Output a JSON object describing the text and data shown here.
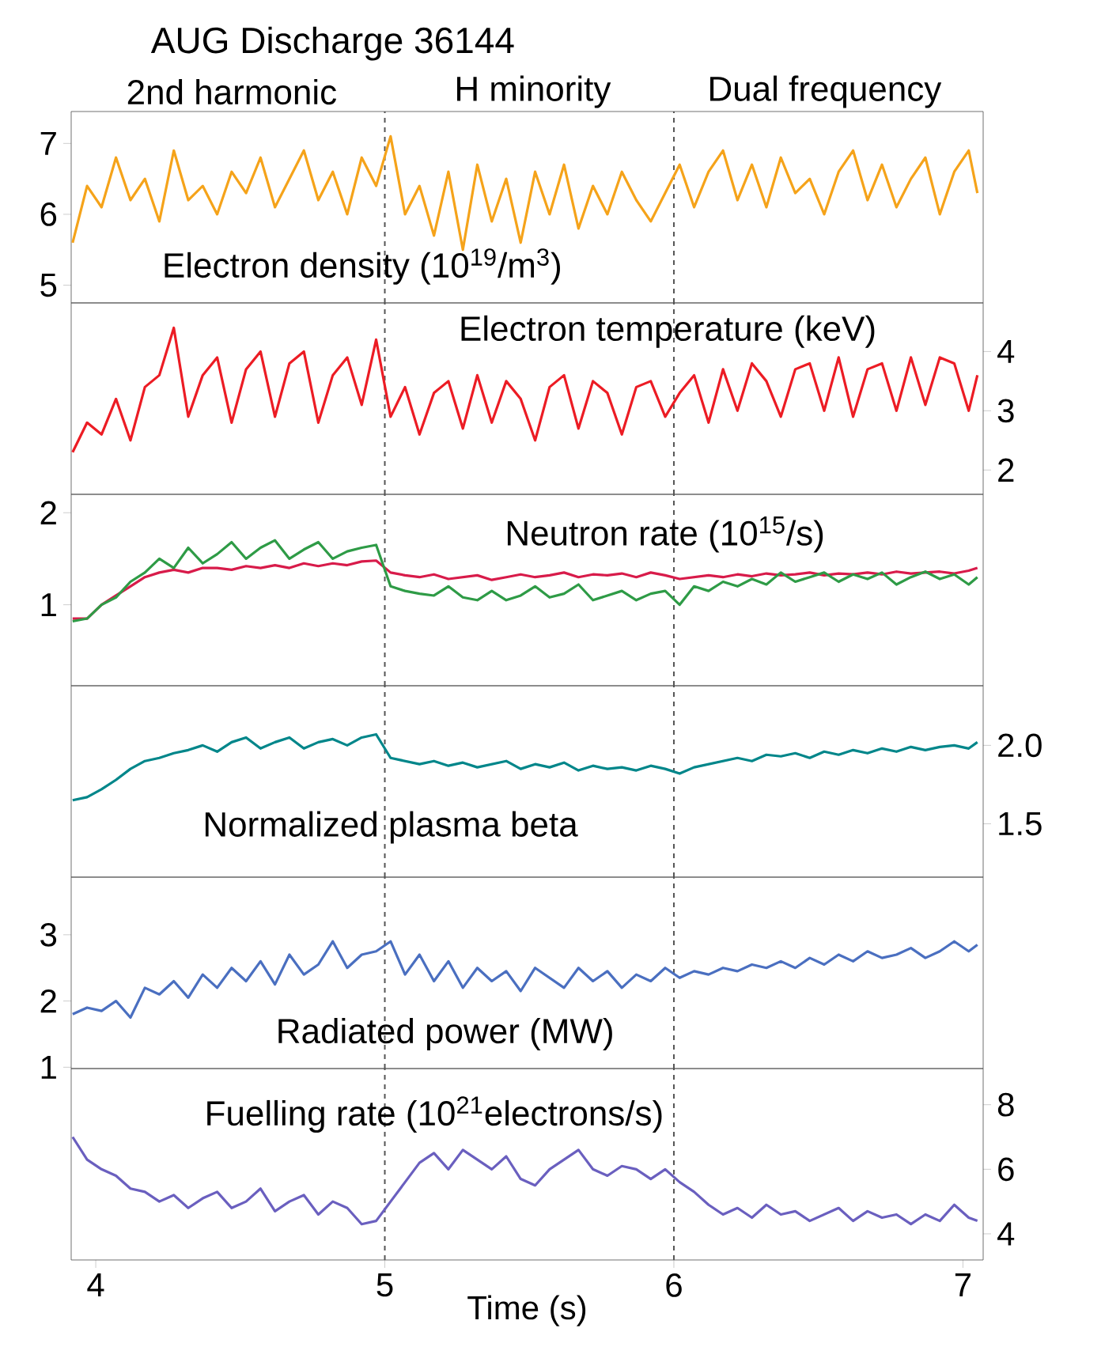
{
  "chart_data": [
    {
      "type": "line",
      "title": "AUG Discharge 36144",
      "annotations": [
        "2nd harmonic",
        "H minority",
        "Dual frequency",
        "Electron density (10$^{19}$/m$^{3}$)"
      ],
      "x": [
        3.92,
        3.97,
        4.02,
        4.07,
        4.12,
        4.17,
        4.22,
        4.27,
        4.32,
        4.37,
        4.42,
        4.47,
        4.52,
        4.57,
        4.62,
        4.67,
        4.72,
        4.77,
        4.82,
        4.87,
        4.92,
        4.97,
        5.02,
        5.07,
        5.12,
        5.17,
        5.22,
        5.27,
        5.32,
        5.37,
        5.42,
        5.47,
        5.52,
        5.57,
        5.62,
        5.67,
        5.72,
        5.77,
        5.82,
        5.87,
        5.92,
        5.97,
        6.02,
        6.07,
        6.12,
        6.17,
        6.22,
        6.27,
        6.32,
        6.37,
        6.42,
        6.47,
        6.52,
        6.57,
        6.62,
        6.67,
        6.72,
        6.77,
        6.82,
        6.87,
        6.92,
        6.97,
        7.02,
        7.05
      ],
      "xlim": [
        3.915,
        7.07
      ],
      "ylim": [
        4.75,
        7.45
      ],
      "yticks": [
        5,
        6,
        7
      ],
      "tick_labels": "y",
      "line_style": "solid",
      "marker": "none",
      "ref_lines": [
        {
          "axis": "x",
          "value": 5,
          "color": "#555555",
          "line_style": "dashed"
        },
        {
          "axis": "x",
          "value": 6,
          "color": "#555555",
          "line_style": "dashed"
        }
      ],
      "series": [
        {
          "color": "#f5a31a",
          "values": [
            5.6,
            6.4,
            6.1,
            6.8,
            6.2,
            6.5,
            5.9,
            6.9,
            6.2,
            6.4,
            6.0,
            6.6,
            6.3,
            6.8,
            6.1,
            6.5,
            6.9,
            6.2,
            6.6,
            6.0,
            6.8,
            6.4,
            7.1,
            6.0,
            6.4,
            5.7,
            6.6,
            5.5,
            6.7,
            5.9,
            6.5,
            5.6,
            6.6,
            6.0,
            6.7,
            5.8,
            6.4,
            6.0,
            6.6,
            6.2,
            5.9,
            6.3,
            6.7,
            6.1,
            6.6,
            6.9,
            6.2,
            6.7,
            6.1,
            6.8,
            6.3,
            6.5,
            6.0,
            6.6,
            6.9,
            6.2,
            6.7,
            6.1,
            6.5,
            6.8,
            6.0,
            6.6,
            6.9,
            6.3
          ]
        }
      ]
    },
    {
      "type": "line",
      "annotations": [
        "Electron temperature (keV)"
      ],
      "x": [
        3.92,
        3.97,
        4.02,
        4.07,
        4.12,
        4.17,
        4.22,
        4.27,
        4.32,
        4.37,
        4.42,
        4.47,
        4.52,
        4.57,
        4.62,
        4.67,
        4.72,
        4.77,
        4.82,
        4.87,
        4.92,
        4.97,
        5.02,
        5.07,
        5.12,
        5.17,
        5.22,
        5.27,
        5.32,
        5.37,
        5.42,
        5.47,
        5.52,
        5.57,
        5.62,
        5.67,
        5.72,
        5.77,
        5.82,
        5.87,
        5.92,
        5.97,
        6.02,
        6.07,
        6.12,
        6.17,
        6.22,
        6.27,
        6.32,
        6.37,
        6.42,
        6.47,
        6.52,
        6.57,
        6.62,
        6.67,
        6.72,
        6.77,
        6.82,
        6.87,
        6.92,
        6.97,
        7.02,
        7.05
      ],
      "xlim": [
        3.915,
        7.07
      ],
      "y2lim": [
        1.59,
        4.82
      ],
      "y2ticks": [
        2,
        3,
        4
      ],
      "tick_labels": "y",
      "line_style": "solid",
      "marker": "none",
      "ref_lines": [
        {
          "axis": "x",
          "value": 5,
          "color": "#555555",
          "line_style": "dashed"
        },
        {
          "axis": "x",
          "value": 6,
          "color": "#555555",
          "line_style": "dashed"
        }
      ],
      "series": [
        {
          "color": "#ec1c24",
          "axis": "y2",
          "values": [
            2.3,
            2.8,
            2.6,
            3.2,
            2.5,
            3.4,
            3.6,
            4.4,
            2.9,
            3.6,
            3.9,
            2.8,
            3.7,
            4.0,
            2.9,
            3.8,
            4.0,
            2.8,
            3.6,
            3.9,
            3.1,
            4.2,
            2.9,
            3.4,
            2.6,
            3.3,
            3.5,
            2.7,
            3.6,
            2.8,
            3.5,
            3.2,
            2.5,
            3.4,
            3.6,
            2.7,
            3.5,
            3.3,
            2.6,
            3.4,
            3.5,
            2.9,
            3.3,
            3.6,
            2.8,
            3.7,
            3.0,
            3.8,
            3.5,
            2.9,
            3.7,
            3.8,
            3.0,
            3.9,
            2.9,
            3.7,
            3.8,
            3.0,
            3.9,
            3.1,
            3.9,
            3.8,
            3.0,
            3.6
          ]
        }
      ]
    },
    {
      "type": "line",
      "annotations": [
        "Neutron rate (10$^{15}$/s)"
      ],
      "x": [
        3.92,
        3.97,
        4.02,
        4.07,
        4.12,
        4.17,
        4.22,
        4.27,
        4.32,
        4.37,
        4.42,
        4.47,
        4.52,
        4.57,
        4.62,
        4.67,
        4.72,
        4.77,
        4.82,
        4.87,
        4.92,
        4.97,
        5.02,
        5.07,
        5.12,
        5.17,
        5.22,
        5.27,
        5.32,
        5.37,
        5.42,
        5.47,
        5.52,
        5.57,
        5.62,
        5.67,
        5.72,
        5.77,
        5.82,
        5.87,
        5.92,
        5.97,
        6.02,
        6.07,
        6.12,
        6.17,
        6.22,
        6.27,
        6.32,
        6.37,
        6.42,
        6.47,
        6.52,
        6.57,
        6.62,
        6.67,
        6.72,
        6.77,
        6.82,
        6.87,
        6.92,
        6.97,
        7.02,
        7.05
      ],
      "xlim": [
        3.915,
        7.07
      ],
      "ylim": [
        0.12,
        2.2
      ],
      "yticks": [
        1,
        2
      ],
      "tick_labels": "y",
      "line_style": "solid",
      "marker": "none",
      "ref_lines": [
        {
          "axis": "x",
          "value": 5,
          "color": "#555555",
          "line_style": "dashed"
        },
        {
          "axis": "x",
          "value": 6,
          "color": "#555555",
          "line_style": "dashed"
        }
      ],
      "series": [
        {
          "color": "#d81b4a",
          "values": [
            0.85,
            0.85,
            1.0,
            1.1,
            1.2,
            1.3,
            1.35,
            1.38,
            1.35,
            1.4,
            1.4,
            1.38,
            1.42,
            1.4,
            1.43,
            1.4,
            1.45,
            1.42,
            1.45,
            1.43,
            1.47,
            1.48,
            1.35,
            1.32,
            1.3,
            1.33,
            1.28,
            1.3,
            1.32,
            1.27,
            1.3,
            1.33,
            1.3,
            1.32,
            1.35,
            1.3,
            1.33,
            1.32,
            1.34,
            1.3,
            1.35,
            1.32,
            1.28,
            1.3,
            1.32,
            1.3,
            1.33,
            1.31,
            1.34,
            1.32,
            1.33,
            1.35,
            1.32,
            1.34,
            1.33,
            1.35,
            1.33,
            1.36,
            1.34,
            1.35,
            1.36,
            1.34,
            1.37,
            1.4
          ]
        },
        {
          "color": "#2e9b46",
          "values": [
            0.82,
            0.85,
            1.0,
            1.08,
            1.25,
            1.35,
            1.5,
            1.4,
            1.62,
            1.45,
            1.55,
            1.68,
            1.5,
            1.62,
            1.7,
            1.5,
            1.6,
            1.68,
            1.5,
            1.58,
            1.62,
            1.65,
            1.2,
            1.15,
            1.12,
            1.1,
            1.2,
            1.08,
            1.05,
            1.15,
            1.05,
            1.1,
            1.2,
            1.08,
            1.12,
            1.22,
            1.05,
            1.1,
            1.15,
            1.05,
            1.12,
            1.15,
            1.0,
            1.2,
            1.15,
            1.25,
            1.2,
            1.28,
            1.22,
            1.35,
            1.25,
            1.3,
            1.35,
            1.25,
            1.33,
            1.28,
            1.35,
            1.22,
            1.3,
            1.36,
            1.28,
            1.33,
            1.22,
            1.3
          ]
        }
      ]
    },
    {
      "type": "line",
      "annotations": [
        "Normalized plasma beta"
      ],
      "x": [
        3.92,
        3.97,
        4.02,
        4.07,
        4.12,
        4.17,
        4.22,
        4.27,
        4.32,
        4.37,
        4.42,
        4.47,
        4.52,
        4.57,
        4.62,
        4.67,
        4.72,
        4.77,
        4.82,
        4.87,
        4.92,
        4.97,
        5.02,
        5.07,
        5.12,
        5.17,
        5.22,
        5.27,
        5.32,
        5.37,
        5.42,
        5.47,
        5.52,
        5.57,
        5.62,
        5.67,
        5.72,
        5.77,
        5.82,
        5.87,
        5.92,
        5.97,
        6.02,
        6.07,
        6.12,
        6.17,
        6.22,
        6.27,
        6.32,
        6.37,
        6.42,
        6.47,
        6.52,
        6.57,
        6.62,
        6.67,
        6.72,
        6.77,
        6.82,
        6.87,
        6.92,
        6.97,
        7.02,
        7.05
      ],
      "xlim": [
        3.915,
        7.07
      ],
      "y2lim": [
        1.16,
        2.38
      ],
      "y2ticks": [
        {
          "value": 1.5,
          "label": "1.5"
        },
        {
          "value": 2,
          "label": "2.0"
        }
      ],
      "tick_labels": "y",
      "line_style": "solid",
      "marker": "none",
      "ref_lines": [
        {
          "axis": "x",
          "value": 5,
          "color": "#555555",
          "line_style": "dashed"
        },
        {
          "axis": "x",
          "value": 6,
          "color": "#555555",
          "line_style": "dashed"
        }
      ],
      "series": [
        {
          "color": "#00868a",
          "axis": "y2",
          "values": [
            1.65,
            1.67,
            1.72,
            1.78,
            1.85,
            1.9,
            1.92,
            1.95,
            1.97,
            2.0,
            1.96,
            2.02,
            2.05,
            1.98,
            2.02,
            2.05,
            1.98,
            2.02,
            2.04,
            2.0,
            2.05,
            2.07,
            1.92,
            1.9,
            1.88,
            1.9,
            1.87,
            1.89,
            1.86,
            1.88,
            1.9,
            1.85,
            1.88,
            1.86,
            1.89,
            1.84,
            1.87,
            1.85,
            1.86,
            1.84,
            1.87,
            1.85,
            1.82,
            1.86,
            1.88,
            1.9,
            1.92,
            1.9,
            1.94,
            1.93,
            1.95,
            1.92,
            1.96,
            1.94,
            1.97,
            1.95,
            1.98,
            1.96,
            1.99,
            1.97,
            1.99,
            2.0,
            1.98,
            2.02
          ]
        }
      ]
    },
    {
      "type": "line",
      "annotations": [
        "Radiated power (MW)"
      ],
      "x": [
        3.92,
        3.97,
        4.02,
        4.07,
        4.12,
        4.17,
        4.22,
        4.27,
        4.32,
        4.37,
        4.42,
        4.47,
        4.52,
        4.57,
        4.62,
        4.67,
        4.72,
        4.77,
        4.82,
        4.87,
        4.92,
        4.97,
        5.02,
        5.07,
        5.12,
        5.17,
        5.22,
        5.27,
        5.32,
        5.37,
        5.42,
        5.47,
        5.52,
        5.57,
        5.62,
        5.67,
        5.72,
        5.77,
        5.82,
        5.87,
        5.92,
        5.97,
        6.02,
        6.07,
        6.12,
        6.17,
        6.22,
        6.27,
        6.32,
        6.37,
        6.42,
        6.47,
        6.52,
        6.57,
        6.62,
        6.67,
        6.72,
        6.77,
        6.82,
        6.87,
        6.92,
        6.97,
        7.02,
        7.05
      ],
      "xlim": [
        3.915,
        7.07
      ],
      "ylim": [
        0.98,
        3.87
      ],
      "yticks": [
        1,
        2,
        3
      ],
      "tick_labels": "y",
      "line_style": "solid",
      "marker": "none",
      "ref_lines": [
        {
          "axis": "x",
          "value": 5,
          "color": "#555555",
          "line_style": "dashed"
        },
        {
          "axis": "x",
          "value": 6,
          "color": "#555555",
          "line_style": "dashed"
        }
      ],
      "series": [
        {
          "color": "#4a6fc0",
          "values": [
            1.8,
            1.9,
            1.85,
            2.0,
            1.75,
            2.2,
            2.1,
            2.3,
            2.05,
            2.4,
            2.2,
            2.5,
            2.3,
            2.6,
            2.25,
            2.7,
            2.4,
            2.55,
            2.9,
            2.5,
            2.7,
            2.75,
            2.9,
            2.4,
            2.7,
            2.3,
            2.6,
            2.2,
            2.5,
            2.3,
            2.45,
            2.15,
            2.5,
            2.35,
            2.2,
            2.5,
            2.3,
            2.45,
            2.2,
            2.4,
            2.3,
            2.5,
            2.35,
            2.45,
            2.4,
            2.5,
            2.45,
            2.55,
            2.5,
            2.6,
            2.5,
            2.65,
            2.55,
            2.7,
            2.6,
            2.75,
            2.65,
            2.7,
            2.8,
            2.65,
            2.75,
            2.9,
            2.75,
            2.85
          ]
        }
      ]
    },
    {
      "type": "line",
      "annotations": [
        "Fuelling rate (10$^{21}$electrons/s)"
      ],
      "xlabel": "Time (s)",
      "x": [
        3.92,
        3.97,
        4.02,
        4.07,
        4.12,
        4.17,
        4.22,
        4.27,
        4.32,
        4.37,
        4.42,
        4.47,
        4.52,
        4.57,
        4.62,
        4.67,
        4.72,
        4.77,
        4.82,
        4.87,
        4.92,
        4.97,
        5.02,
        5.07,
        5.12,
        5.17,
        5.22,
        5.27,
        5.32,
        5.37,
        5.42,
        5.47,
        5.52,
        5.57,
        5.62,
        5.67,
        5.72,
        5.77,
        5.82,
        5.87,
        5.92,
        5.97,
        6.02,
        6.07,
        6.12,
        6.17,
        6.22,
        6.27,
        6.32,
        6.37,
        6.42,
        6.47,
        6.52,
        6.57,
        6.62,
        6.67,
        6.72,
        6.77,
        6.82,
        6.87,
        6.92,
        6.97,
        7.02,
        7.05
      ],
      "xlim": [
        3.915,
        7.07
      ],
      "xticks": [
        4,
        5,
        6,
        7
      ],
      "y2lim": [
        3.19,
        9.12
      ],
      "y2ticks": [
        4,
        6,
        8
      ],
      "line_style": "solid",
      "marker": "none",
      "ref_lines": [
        {
          "axis": "x",
          "value": 5,
          "color": "#555555",
          "line_style": "dashed"
        },
        {
          "axis": "x",
          "value": 6,
          "color": "#555555",
          "line_style": "dashed"
        }
      ],
      "series": [
        {
          "color": "#6a5fbf",
          "axis": "y2",
          "values": [
            7.0,
            6.3,
            6.0,
            5.8,
            5.4,
            5.3,
            5.0,
            5.2,
            4.8,
            5.1,
            5.3,
            4.8,
            5.0,
            5.4,
            4.7,
            5.0,
            5.2,
            4.6,
            5.0,
            4.8,
            4.3,
            4.4,
            5.0,
            5.6,
            6.2,
            6.5,
            6.0,
            6.6,
            6.3,
            6.0,
            6.4,
            5.7,
            5.5,
            6.0,
            6.3,
            6.6,
            6.0,
            5.8,
            6.1,
            6.0,
            5.7,
            6.0,
            5.6,
            5.3,
            4.9,
            4.6,
            4.8,
            4.5,
            4.9,
            4.6,
            4.7,
            4.4,
            4.6,
            4.8,
            4.4,
            4.7,
            4.5,
            4.6,
            4.3,
            4.6,
            4.4,
            4.9,
            4.5,
            4.4
          ]
        }
      ]
    }
  ]
}
